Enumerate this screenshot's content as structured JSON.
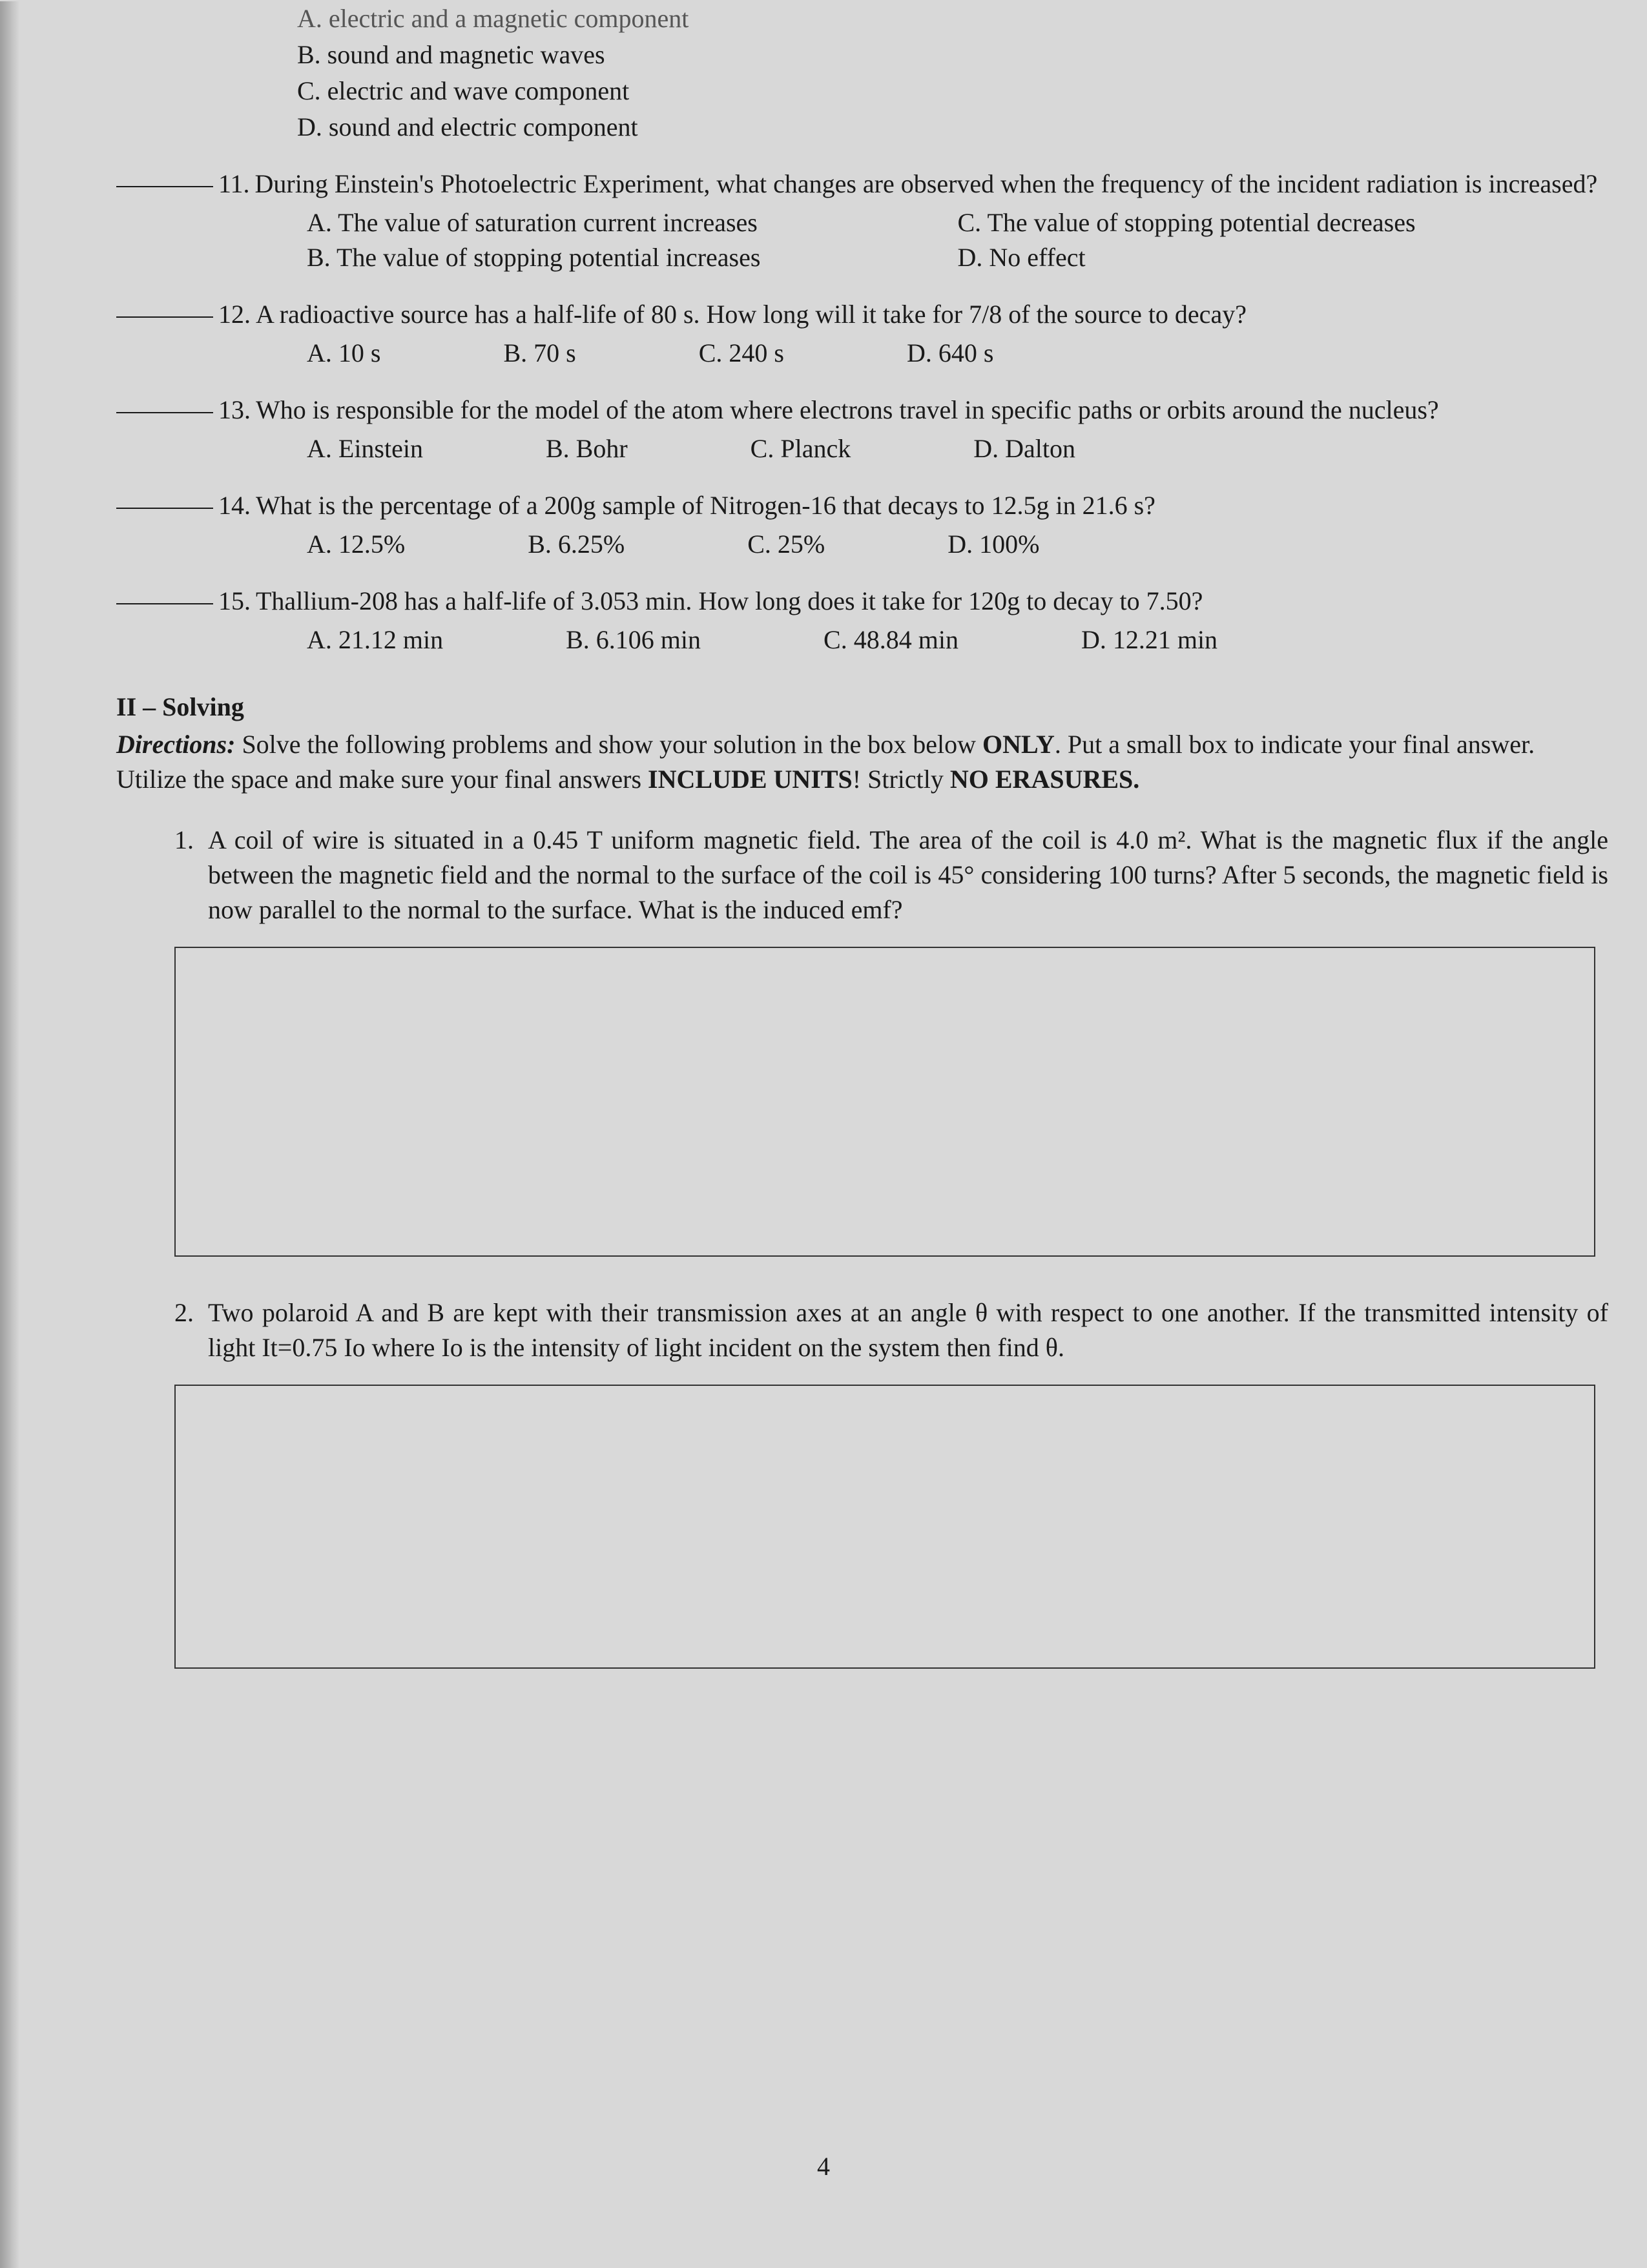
{
  "truncated_opts": {
    "a": "A. electric and a magnetic component",
    "b": "B. sound and magnetic waves",
    "c": "C. electric and wave component",
    "d": "D. sound and electric component"
  },
  "q11": {
    "text": "During Einstein's Photoelectric Experiment, what changes are observed when the frequency of the incident radiation is increased?",
    "a": "A. The value of saturation current increases",
    "b": "B. The value of stopping potential increases",
    "c": "C. The value of stopping potential decreases",
    "d": "D. No effect"
  },
  "q12": {
    "text": "A radioactive source has a half-life of 80 s. How long will it take for 7/8 of the source to decay?",
    "a": "A. 10 s",
    "b": "B. 70 s",
    "c": "C. 240 s",
    "d": "D. 640 s"
  },
  "q13": {
    "text": "Who is responsible for the model of the atom where electrons travel in specific paths or orbits around the nucleus?",
    "a": "A. Einstein",
    "b": "B. Bohr",
    "c": "C. Planck",
    "d": "D. Dalton"
  },
  "q14": {
    "text": "What is the percentage of a 200g sample of Nitrogen-16 that decays to 12.5g in 21.6 s?",
    "a": "A. 12.5%",
    "b": "B. 6.25%",
    "c": "C. 25%",
    "d": "D. 100%"
  },
  "q15": {
    "text": "Thallium-208 has a half-life of 3.053 min. How long does it take for 120g to decay to 7.50?",
    "a": "A. 21.12 min",
    "b": "B. 6.106 min",
    "c": "C. 48.84 min",
    "d": "D. 12.21 min"
  },
  "section2": {
    "title": "II – Solving",
    "directions_lead": "Directions:",
    "directions_text_1": " Solve the following problems and show your solution in the box below ",
    "only": "ONLY",
    "directions_text_2": ". Put a small box to indicate your final answer. Utilize the space and make sure your final answers ",
    "include_units": "INCLUDE UNITS",
    "directions_text_3": "! Strictly ",
    "no_erasures": "NO ERASURES."
  },
  "solve1": {
    "num": "1.",
    "text": "A coil of wire is situated in a 0.45 T uniform magnetic field. The area of the coil is 4.0 m². What is the magnetic flux if the angle between the magnetic field and the normal to the surface of the coil is 45° considering 100 turns? After 5 seconds, the magnetic field is now parallel to the normal to the surface. What is the induced emf?"
  },
  "solve2": {
    "num": "2.",
    "text": "Two polaroid A and B are kept with their transmission axes at an angle θ with respect to one another. If the transmitted intensity of light It=0.75 Io where Io is the intensity of light incident on the system then find θ."
  },
  "page_number": "4",
  "labels": {
    "q11": "11.",
    "q12": "12.",
    "q13": "13.",
    "q14": "14.",
    "q15": "15."
  }
}
